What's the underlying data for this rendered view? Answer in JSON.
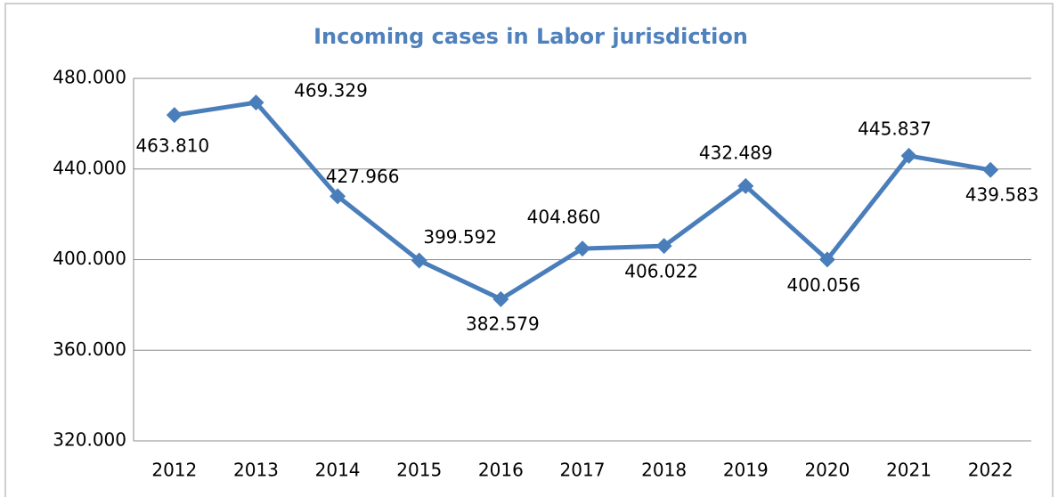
{
  "chart_data": {
    "type": "line",
    "title": "Incoming cases in Labor jurisdiction",
    "categories": [
      "2012",
      "2013",
      "2014",
      "2015",
      "2016",
      "2017",
      "2018",
      "2019",
      "2020",
      "2021",
      "2022"
    ],
    "series": [
      {
        "name": "Incoming cases",
        "color": "#4a7ebb",
        "values": [
          463810,
          469329,
          427966,
          399592,
          382579,
          404860,
          406022,
          432489,
          400056,
          445837,
          439583
        ],
        "value_labels": [
          "463.810",
          "469.329",
          "427.966",
          "399.592",
          "382.579",
          "404.860",
          "406.022",
          "432.489",
          "400.056",
          "445.837",
          "439.583"
        ]
      }
    ],
    "ylim": [
      320000,
      480000
    ],
    "yticks": [
      {
        "value": 320000,
        "label": "320.000"
      },
      {
        "value": 360000,
        "label": "360.000"
      },
      {
        "value": 400000,
        "label": "400.000"
      },
      {
        "value": 440000,
        "label": "440.000"
      },
      {
        "value": 480000,
        "label": "480.000"
      }
    ],
    "grid": true
  }
}
